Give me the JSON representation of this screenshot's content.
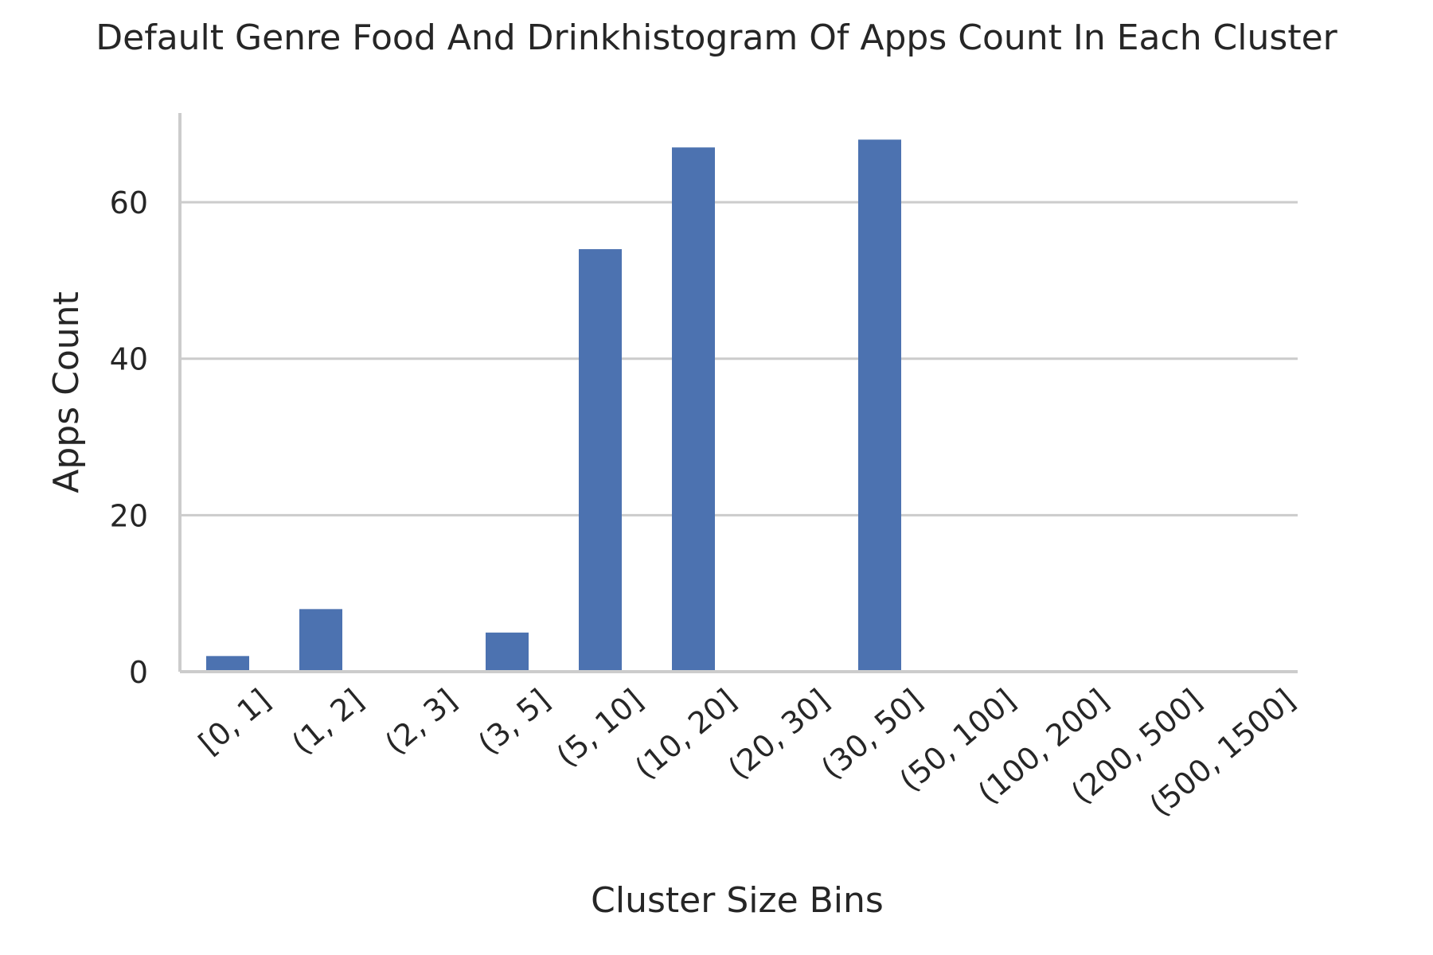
{
  "chart_data": {
    "type": "bar",
    "title": "Default Genre Food And Drinkhistogram Of Apps Count In Each Cluster",
    "xlabel": "Cluster Size Bins",
    "ylabel": "Apps Count",
    "categories": [
      "[0, 1]",
      "(1, 2]",
      "(2, 3]",
      "(3, 5]",
      "(5, 10]",
      "(10, 20]",
      "(20, 30]",
      "(30, 50]",
      "(50, 100]",
      "(100, 200]",
      "(200, 500]",
      "(500, 1500]"
    ],
    "values": [
      2,
      8,
      0,
      5,
      54,
      67,
      0,
      68,
      0,
      0,
      0,
      0
    ],
    "ylim": [
      0,
      71.4
    ],
    "yticks": [
      0,
      20,
      40,
      60
    ],
    "grid": "y",
    "bar_color": "#4c72b0",
    "legend": "none"
  }
}
